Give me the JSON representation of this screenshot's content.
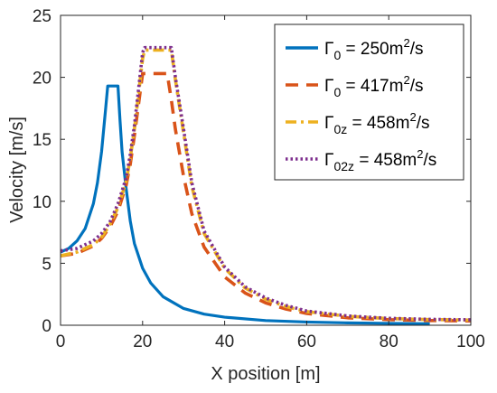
{
  "chart_data": {
    "type": "line",
    "title": "",
    "xlabel": "X position [m]",
    "ylabel": "Velocity [m/s]",
    "xlim": [
      0,
      100
    ],
    "ylim": [
      0,
      25
    ],
    "xticks": [
      0,
      20,
      40,
      60,
      80,
      100
    ],
    "yticks": [
      0,
      5,
      10,
      15,
      20,
      25
    ],
    "grid": false,
    "legend_position": "top-right",
    "series": [
      {
        "name": "Γ0 = 250m²/s",
        "legend": {
          "symbol": "Γ",
          "sub": "0",
          "value": " = 250m",
          "sup": "2",
          "unit": "/s"
        },
        "color": "#0072BD",
        "style": "solid",
        "x": [
          0,
          2,
          4,
          6,
          8,
          9,
          10,
          11,
          11.5,
          12,
          14,
          14.5,
          15,
          16,
          17,
          18,
          20,
          22,
          25,
          30,
          35,
          40,
          50,
          60,
          70,
          80,
          90
        ],
        "y": [
          5.9,
          6.2,
          6.8,
          7.8,
          9.8,
          11.5,
          14,
          17.5,
          19.3,
          19.3,
          19.3,
          16.5,
          14,
          11,
          8.4,
          6.6,
          4.6,
          3.4,
          2.3,
          1.35,
          0.9,
          0.65,
          0.38,
          0.26,
          0.19,
          0.15,
          0.12
        ]
      },
      {
        "name": "Γ0 = 417m²/s",
        "legend": {
          "symbol": "Γ",
          "sub": "0",
          "value": " = 417m",
          "sup": "2",
          "unit": "/s"
        },
        "color": "#D95319",
        "style": "dashed",
        "x": [
          0,
          4,
          8,
          10,
          12,
          14,
          16,
          17,
          18,
          19,
          20,
          21,
          22,
          26,
          27,
          28,
          30,
          32,
          35,
          40,
          45,
          50,
          55,
          60,
          70,
          80,
          90,
          100
        ],
        "y": [
          5.6,
          5.8,
          6.4,
          7.0,
          7.9,
          9.2,
          11.3,
          13.0,
          15.3,
          17.8,
          20.3,
          20.3,
          20.3,
          20.3,
          18.2,
          15.8,
          12.0,
          9.0,
          6.3,
          3.9,
          2.6,
          1.8,
          1.3,
          0.95,
          0.6,
          0.45,
          0.38,
          0.35
        ]
      },
      {
        "name": "Γ0z = 458m²/s",
        "legend": {
          "symbol": "Γ",
          "sub": "0z",
          "value": " = 458m",
          "sup": "2",
          "unit": "/s"
        },
        "color": "#EDB120",
        "style": "dashdot",
        "x": [
          0,
          4,
          8,
          10,
          12,
          14,
          16,
          17,
          18,
          19,
          20,
          20.5,
          27,
          27.5,
          28,
          30,
          32,
          35,
          40,
          45,
          50,
          55,
          60,
          70,
          80,
          90,
          100
        ],
        "y": [
          5.6,
          5.9,
          6.5,
          7.1,
          8.1,
          9.5,
          11.6,
          13.5,
          15.8,
          18.6,
          21.5,
          22.2,
          22.2,
          21.0,
          19.8,
          15.5,
          11.2,
          7.4,
          4.6,
          3.0,
          2.1,
          1.5,
          1.1,
          0.72,
          0.54,
          0.46,
          0.42
        ]
      },
      {
        "name": "Γ02z = 458m²/s",
        "legend": {
          "symbol": "Γ",
          "sub": "02z",
          "value": " = 458m",
          "sup": "2",
          "unit": "/s"
        },
        "color": "#7E2F8E",
        "style": "dotted",
        "x": [
          0,
          4,
          8,
          10,
          12,
          14,
          16,
          17,
          18,
          19,
          20,
          20.5,
          27,
          27.5,
          28,
          30,
          32,
          35,
          40,
          45,
          50,
          55,
          60,
          70,
          80,
          90,
          100
        ],
        "y": [
          6.0,
          6.2,
          6.8,
          7.4,
          8.3,
          9.8,
          11.9,
          13.8,
          16.1,
          19.0,
          22.0,
          22.4,
          22.4,
          21.2,
          20.0,
          15.8,
          11.5,
          7.6,
          4.7,
          3.1,
          2.2,
          1.6,
          1.15,
          0.75,
          0.56,
          0.48,
          0.44
        ]
      }
    ]
  }
}
